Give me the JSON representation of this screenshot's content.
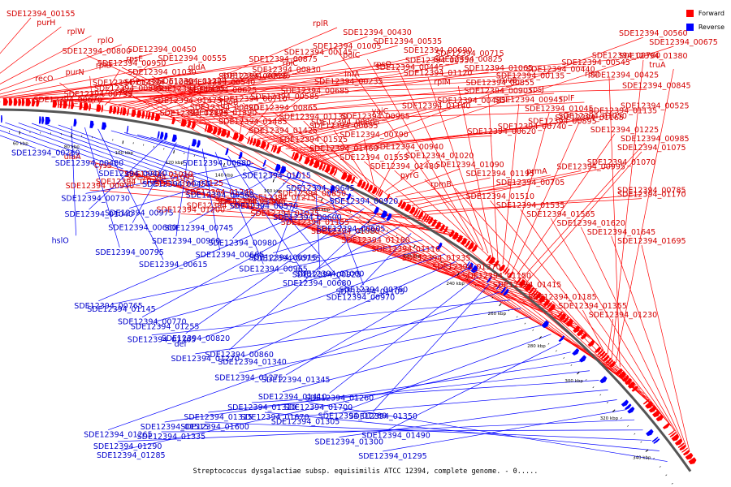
{
  "legend": {
    "forward_label": "Forward",
    "reverse_label": "Reverse",
    "forward_color": "#ff0000",
    "reverse_color": "#0000ff"
  },
  "caption": "Streptococcus dysgalactiae subsp. equisimilis ATCC 12394, complete genome. - 0.....",
  "scale_labels": [
    "40 kbp",
    "60 kbp",
    "80 kbp",
    "100 kbp",
    "120 kbp",
    "140 kbp",
    "160 kbp",
    "180 kbp",
    "200 kbp",
    "220 kbp",
    "240 kbp",
    "260 kbp",
    "280 kbp",
    "300 kbp",
    "320 kbp",
    "340 kbp"
  ],
  "forward_labels": [
    "SDE12394_00155",
    "purH",
    "rplW",
    "rplO",
    "SDE12394_00450",
    "SDE12394_00555",
    "gldA",
    "SDE12394_00725",
    "SDE12394_00875",
    "SDE12394_00145",
    "SDE12394_00235",
    "infA",
    "SDE12394_00445",
    "SDE12394_00550",
    "SDE12394_00715",
    "SDE12394_00855",
    "SDE12394_00135",
    "SDE12394_00440",
    "SDE12394_00545",
    "SDE12394_00700",
    "SDE12394_00845",
    "recO",
    "purN",
    "rplD",
    "rpsE",
    "SDE12394_00435",
    "SDE12394_00540",
    "SDE12394_00695",
    "SDE12394_00830",
    "rplC",
    "rplR",
    "SDE12394_00430",
    "SDE12394_00535",
    "SDE12394_00690",
    "SDE12394_00825",
    "SDE12394_01065",
    "ruvB",
    "rpsJ",
    "rplF",
    "SDE12394_00425",
    "SDE12394_00525",
    "SDE12394_00670",
    "SDE12394_00735",
    "SDE12394_00885",
    "SDE12394_01060",
    "SDE12394_01175",
    "SDE12394_00420",
    "rpoB",
    "SDE12394_00585",
    "SDE12394_00685",
    "SDE12394_00805",
    "SDE12394_00955",
    "yajC",
    "SDE12394_01140",
    "SDE12394_00485",
    "SDE12394_00620",
    "SDE12394_00740",
    "SDE12394_00895",
    "SDE12394_01050",
    "SDE12394_01135",
    "SDE12394_00560",
    "SDE12394_00675",
    "SDE12394_00800",
    "SDE12394_00950",
    "SDE12394_01030",
    "SDE12394_01220",
    "SDE12394_00625",
    "SDE12394_00710",
    "SDE12394_00865",
    "SDE12394_01130",
    "SDE12394_00655",
    "SDE12394_00790",
    "SDE12394_00940",
    "SDE12394_01020",
    "SDE12394_01090",
    "SDE12394_01195",
    "SDE12394_00705",
    "prmA",
    "SDE12394_00995",
    "SDE12394_01070",
    "SDE12394_01170",
    "SDE12394_00785",
    "SDE12394_00930",
    "SDE12394_01025",
    "SDE12394_01095",
    "SDE12394_01200",
    "SDE12394_00750",
    "SDE12394_00990",
    "SDE12394_01215",
    "SDE12394_00850",
    "SDE12394_01005",
    "polC",
    "rpsO",
    "SDE12394_01120",
    "rplM",
    "SDE12394_00905",
    "SDE12394_00945",
    "SDE12394_01045",
    "SDE12394_01165",
    "SDE12394_01225",
    "SDE12394_00985",
    "SDE12394_01075",
    "ulaA",
    "cysS",
    "SDE12394_01010",
    "SDE12394_01125",
    "SDE12394_01240",
    "SDE12394_01360",
    "SDE12394_01035",
    "SDE12394_01155",
    "SDE12394_01080",
    "SDE12394_01180",
    "SDE12394_01110",
    "SDE12394_01235",
    "SDE12394_01370",
    "SDE12394_01150",
    "SDE12394_01415",
    "SDE12394_01185",
    "SDE12394_01355",
    "SDE12394_01230",
    "SDE12394_01380",
    "truA",
    "rpsI",
    "SDE12394_01420",
    "tig",
    "SDE12394_01475",
    "SDE12394_01390",
    "SDE12394_01485",
    "SDE12394_01425",
    "SDE12394_01525",
    "SDE12394_01460",
    "SDE12394_01555",
    "SDE12394_01480",
    "pyrG",
    "rpmB",
    "SDE12394_01510",
    "SDE12394_01535",
    "SDE12394_01565",
    "SDE12394_01620",
    "SDE12394_01645",
    "SDE12394_01695"
  ],
  "reverse_labels": [
    "SDE12394_00260",
    "SDE12394_00480",
    "SDE12394_00410",
    "SDE12394_00455",
    "SDE12394_00565",
    "SDE12394_00570",
    "SDE12394_00600",
    "SDE12394_00605",
    "hslO",
    "SDE12394_00795",
    "SDE12394_00615",
    "SDE12394_00880",
    "SDE12394_01015",
    "SDE12394_00645",
    "SDE12394_00920",
    "SDE12394_01040",
    "SDE12394_00660",
    "SDE12394_00960",
    "SDE12394_00665",
    "SDE12394_00965",
    "SDE12394_00680",
    "SDE12394_00970",
    "SDE12394_00730",
    "SDE12394_00975",
    "SDE12394_00745",
    "SDE12394_00980",
    "SDE12394_00755",
    "SDE12394_01000",
    "SDE12394_00760",
    "SDE12394_00765",
    "SDE12394_00770",
    "SDE12394_00820",
    "SDE12394_00860",
    "SDE12394_00915",
    "SDE12394_00925",
    "SDE12394_01105",
    "SDE12394_01145",
    "SDE12394_01255",
    "def",
    "SDE12394_01340",
    "SDE12394_01345",
    "SDE12394_01260",
    "SDE12394_01350",
    "SDE12394_01265",
    "SDE12394_01365",
    "SDE12394_01270",
    "SDE12394_01275",
    "SDE12394_01410",
    "SDE12394_01280",
    "SDE12394_01490",
    "SDE12394_01285",
    "SDE12394_01515",
    "SDE12394_01315",
    "SDE12394_01310",
    "SDE12394_01305",
    "SDE12394_01300",
    "SDE12394_01295",
    "SDE12394_01290",
    "SDE12394_01335",
    "SDE12394_01600",
    "SDE12394_01670",
    "SDE12394_01700"
  ]
}
